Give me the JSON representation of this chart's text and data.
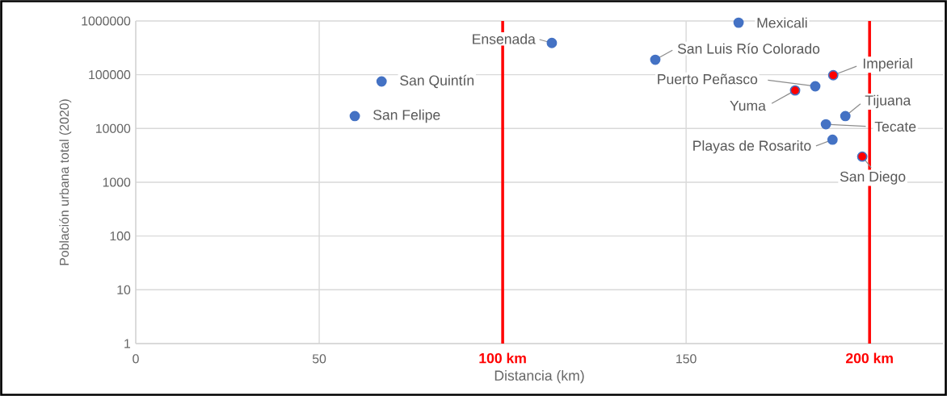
{
  "chart_data": {
    "type": "scatter",
    "xlabel": "Distancia (km)",
    "ylabel": "Población urbana total (2020)",
    "x": [
      164.3,
      113.4,
      141.6,
      190.1,
      185.2,
      179.7,
      67.0,
      59.7,
      193.4,
      188.1,
      189.9,
      198.0
    ],
    "values": [
      930000,
      390000,
      190000,
      98000,
      61000,
      51000,
      75000,
      17000,
      17000,
      12000,
      6200,
      3000
    ],
    "colors": [
      "#4472c4",
      "#4472c4",
      "#4472c4",
      "#ff0000",
      "#4472c4",
      "#ff0000",
      "#4472c4",
      "#4472c4",
      "#4472c4",
      "#4472c4",
      "#4472c4",
      "#ff0000"
    ],
    "log": "y",
    "grid": true,
    "xlim": [
      0,
      220
    ],
    "ylim": [
      1,
      1000000
    ],
    "xticks": [
      0,
      50,
      150
    ],
    "yticks": [
      1,
      10,
      100,
      1000,
      10000,
      100000,
      1000000
    ],
    "ref_lines": [
      {
        "axis": "x",
        "value": 100,
        "label": "100 km",
        "color": "#ff0000"
      },
      {
        "axis": "x",
        "value": 200,
        "label": "200 km",
        "color": "#ff0000"
      }
    ],
    "annotations": [
      {
        "text": "Mexicali",
        "x": 164.3,
        "y": 930000
      },
      {
        "text": "Ensenada",
        "x": 113.4,
        "y": 390000
      },
      {
        "text": "San Luis Río Colorado",
        "x": 141.6,
        "y": 190000
      },
      {
        "text": "Imperial",
        "x": 190.1,
        "y": 98000
      },
      {
        "text": "Puerto Peñasco",
        "x": 185.2,
        "y": 61000
      },
      {
        "text": "Yuma",
        "x": 179.7,
        "y": 51000
      },
      {
        "text": "San Quintín",
        "x": 67.0,
        "y": 75000
      },
      {
        "text": "San Felipe",
        "x": 59.7,
        "y": 17000
      },
      {
        "text": "Tijuana",
        "x": 193.4,
        "y": 17000
      },
      {
        "text": "Tecate",
        "x": 188.1,
        "y": 12000
      },
      {
        "text": "Playas de Rosarito",
        "x": 189.9,
        "y": 6200
      },
      {
        "text": "San Diego",
        "x": 198.0,
        "y": 3000
      }
    ]
  }
}
